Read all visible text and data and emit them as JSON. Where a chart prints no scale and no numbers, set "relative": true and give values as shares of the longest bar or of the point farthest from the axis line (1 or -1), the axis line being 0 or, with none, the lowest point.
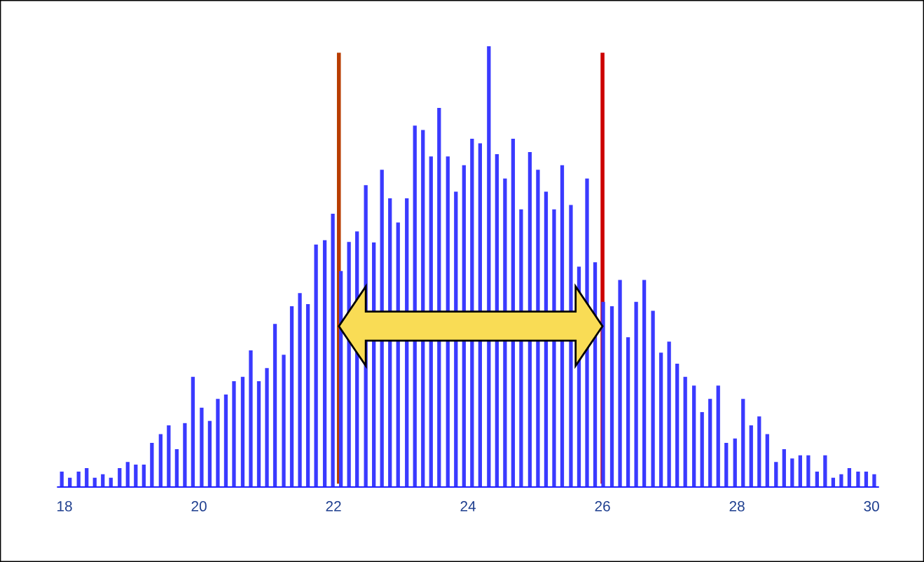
{
  "chart_data": {
    "type": "bar",
    "relative": true,
    "x": [
      17.96,
      18.08,
      18.21,
      18.33,
      18.45,
      18.57,
      18.69,
      18.82,
      18.94,
      19.06,
      19.18,
      19.3,
      19.43,
      19.55,
      19.67,
      19.79,
      19.91,
      20.04,
      20.16,
      20.28,
      20.4,
      20.52,
      20.65,
      20.77,
      20.89,
      21.01,
      21.13,
      21.26,
      21.38,
      21.5,
      21.62,
      21.74,
      21.87,
      21.99,
      22.11,
      22.23,
      22.35,
      22.48,
      22.6,
      22.72,
      22.84,
      22.96,
      23.09,
      23.21,
      23.33,
      23.45,
      23.57,
      23.7,
      23.82,
      23.94,
      24.06,
      24.18,
      24.31,
      24.43,
      24.55,
      24.67,
      24.79,
      24.92,
      25.04,
      25.16,
      25.28,
      25.4,
      25.53,
      25.65,
      25.77,
      25.89,
      26.01,
      26.14,
      26.26,
      26.38,
      26.5,
      26.62,
      26.75,
      26.87,
      26.99,
      27.11,
      27.23,
      27.36,
      27.48,
      27.6,
      27.72,
      27.84,
      27.97,
      28.09,
      28.21,
      28.33,
      28.45,
      28.58,
      28.7,
      28.82,
      28.94,
      29.06,
      29.19,
      29.31,
      29.43,
      29.55,
      29.67,
      29.8,
      29.92,
      30.04
    ],
    "values": [
      0.035,
      0.021,
      0.035,
      0.043,
      0.021,
      0.029,
      0.021,
      0.043,
      0.057,
      0.051,
      0.051,
      0.1,
      0.12,
      0.14,
      0.086,
      0.145,
      0.25,
      0.18,
      0.15,
      0.2,
      0.21,
      0.24,
      0.25,
      0.31,
      0.24,
      0.27,
      0.37,
      0.3,
      0.41,
      0.44,
      0.415,
      0.55,
      0.56,
      0.62,
      0.49,
      0.556,
      0.58,
      0.685,
      0.555,
      0.72,
      0.655,
      0.6,
      0.655,
      0.82,
      0.81,
      0.75,
      0.86,
      0.75,
      0.67,
      0.73,
      0.79,
      0.78,
      1,
      0.755,
      0.7,
      0.79,
      0.63,
      0.76,
      0.72,
      0.67,
      0.63,
      0.73,
      0.64,
      0.5,
      0.7,
      0.51,
      0.42,
      0.41,
      0.47,
      0.34,
      0.42,
      0.47,
      0.4,
      0.305,
      0.33,
      0.28,
      0.25,
      0.23,
      0.17,
      0.2,
      0.23,
      0.1,
      0.11,
      0.2,
      0.14,
      0.16,
      0.12,
      0.057,
      0.086,
      0.065,
      0.072,
      0.072,
      0.035,
      0.072,
      0.021,
      0.029,
      0.043,
      0.035,
      0.035,
      0.029
    ],
    "color": "#3a3aff",
    "xlim": [
      17.9,
      30.1
    ],
    "xticks": [
      18,
      20,
      22,
      24,
      26,
      28,
      30
    ],
    "tick_labels": "x",
    "ref_lines": [
      {
        "axis": "x",
        "value": 22.08,
        "color": "#b83c00"
      },
      {
        "axis": "x",
        "value": 26.0,
        "color": "#cc0000"
      }
    ]
  }
}
